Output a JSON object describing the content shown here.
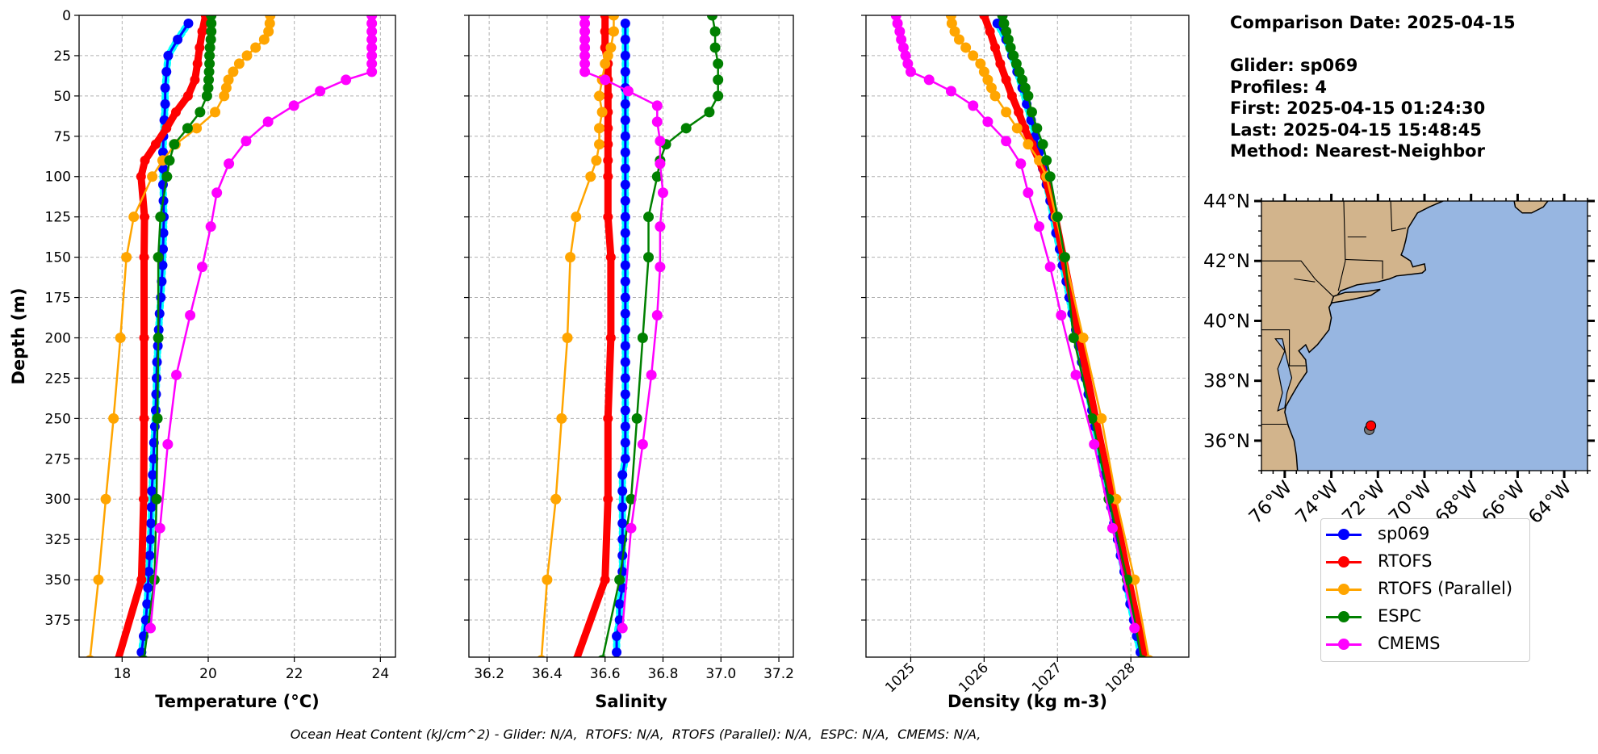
{
  "info": {
    "comparison_date": "Comparison Date: 2025-04-15",
    "glider": "Glider: sp069",
    "profiles": "Profiles: 4",
    "first": "First: 2025-04-15 01:24:30",
    "last": "Last: 2025-04-15 15:48:45",
    "method": "Method: Nearest-Neighbor"
  },
  "footer": "Ocean Heat Content (kJ/cm^2) - Glider: N/A,  RTOFS: N/A,  RTOFS (Parallel): N/A,  ESPC: N/A,  CMEMS: N/A,",
  "legend": [
    {
      "label": "sp069",
      "color": "#0000ff"
    },
    {
      "label": "RTOFS",
      "color": "#ff0000"
    },
    {
      "label": "RTOFS (Parallel)",
      "color": "#ffa500"
    },
    {
      "label": "ESPC",
      "color": "#008000"
    },
    {
      "label": "CMEMS",
      "color": "#ff00ff"
    }
  ],
  "colors": {
    "sp069": "#0000ff",
    "sp069_profiles": "#00ffff",
    "RTOFS": "#ff0000",
    "RTOFS (Parallel)": "#ffa500",
    "ESPC": "#008000",
    "CMEMS": "#ff00ff",
    "land": "#d2b48c",
    "ocean": "#97b6e1"
  },
  "chart_data": [
    {
      "type": "line",
      "xlabel": "Temperature (°C)",
      "ylabel": "Depth (m)",
      "xlim": [
        17.0,
        24.35
      ],
      "ylim": [
        0,
        398
      ],
      "y_inverted": true,
      "grid": true,
      "xticks": [
        18,
        20,
        22,
        24
      ],
      "xtick_labels": [
        "18",
        "20",
        "22",
        "24"
      ],
      "yticks": [
        0,
        25,
        50,
        75,
        100,
        125,
        150,
        175,
        200,
        225,
        250,
        275,
        300,
        325,
        350,
        375
      ],
      "ytick_labels": [
        "0",
        "25",
        "50",
        "75",
        "100",
        "125",
        "150",
        "175",
        "200",
        "225",
        "250",
        "275",
        "300",
        "325",
        "350",
        "375"
      ],
      "series": [
        {
          "name": "sp069",
          "depth": [
            5,
            15,
            25,
            35,
            45,
            55,
            65,
            75,
            85,
            95,
            105,
            115,
            125,
            135,
            145,
            155,
            165,
            175,
            185,
            195,
            205,
            215,
            225,
            235,
            245,
            255,
            265,
            275,
            285,
            295,
            305,
            315,
            325,
            335,
            345,
            355,
            365,
            375,
            385,
            395
          ],
          "values": [
            19.54,
            19.29,
            19.07,
            19.03,
            19.0,
            19.0,
            18.98,
            18.96,
            18.95,
            18.95,
            18.95,
            18.96,
            18.97,
            18.96,
            18.95,
            18.94,
            18.92,
            18.9,
            18.87,
            18.85,
            18.83,
            18.81,
            18.8,
            18.79,
            18.78,
            18.76,
            18.74,
            18.73,
            18.71,
            18.69,
            18.68,
            18.67,
            18.66,
            18.64,
            18.62,
            18.6,
            18.58,
            18.55,
            18.5,
            18.45
          ]
        },
        {
          "name": "RTOFS",
          "depth": [
            0,
            10,
            20,
            30,
            40,
            50,
            60,
            70,
            80,
            90,
            100,
            125,
            150,
            200,
            250,
            300,
            350,
            400
          ],
          "values": [
            19.94,
            19.86,
            19.8,
            19.75,
            19.69,
            19.53,
            19.25,
            19.03,
            18.78,
            18.53,
            18.44,
            18.52,
            18.51,
            18.51,
            18.51,
            18.5,
            18.45,
            17.9
          ]
        },
        {
          "name": "RTOFS (Parallel)",
          "depth": [
            0,
            5,
            10,
            15,
            20,
            25,
            30,
            35,
            40,
            45,
            50,
            60,
            70,
            80,
            90,
            100,
            125,
            150,
            200,
            250,
            300,
            350,
            400
          ],
          "values": [
            21.44,
            21.43,
            21.4,
            21.3,
            21.1,
            20.9,
            20.72,
            20.58,
            20.47,
            20.42,
            20.37,
            20.16,
            19.73,
            19.24,
            18.94,
            18.7,
            18.27,
            18.1,
            17.96,
            17.8,
            17.62,
            17.45,
            17.25
          ]
        },
        {
          "name": "ESPC",
          "depth": [
            0,
            5,
            10,
            15,
            20,
            25,
            30,
            35,
            40,
            45,
            50,
            60,
            70,
            80,
            90,
            100,
            125,
            150,
            200,
            250,
            300,
            350,
            400
          ],
          "values": [
            20.07,
            20.07,
            20.07,
            20.06,
            20.04,
            20.03,
            20.03,
            20.02,
            20.01,
            20.0,
            19.97,
            19.81,
            19.52,
            19.21,
            19.1,
            19.04,
            18.89,
            18.84,
            18.84,
            18.82,
            18.8,
            18.75,
            18.5
          ]
        },
        {
          "name": "CMEMS",
          "depth": [
            0,
            5,
            10,
            15,
            20,
            25,
            30,
            35,
            40,
            47,
            56,
            66,
            78,
            92,
            110,
            131,
            156,
            186,
            223,
            266,
            318,
            380
          ],
          "values": [
            23.8,
            23.8,
            23.8,
            23.8,
            23.8,
            23.8,
            23.8,
            23.8,
            23.2,
            22.6,
            21.99,
            21.39,
            20.88,
            20.48,
            20.2,
            20.06,
            19.86,
            19.58,
            19.26,
            19.06,
            18.88,
            18.66
          ]
        }
      ]
    },
    {
      "type": "line",
      "xlabel": "Salinity",
      "xlim": [
        36.13,
        37.25
      ],
      "ylim": [
        0,
        398
      ],
      "y_inverted": true,
      "grid": true,
      "xticks": [
        36.2,
        36.4,
        36.6,
        36.8,
        37.0,
        37.2
      ],
      "xtick_labels": [
        "36.2",
        "36.4",
        "36.6",
        "36.8",
        "37.0",
        "37.2"
      ],
      "yticks": [
        0,
        25,
        50,
        75,
        100,
        125,
        150,
        175,
        200,
        225,
        250,
        275,
        300,
        325,
        350,
        375
      ],
      "series": [
        {
          "name": "sp069",
          "depth": [
            5,
            15,
            25,
            35,
            45,
            55,
            65,
            75,
            85,
            95,
            105,
            115,
            125,
            135,
            145,
            155,
            165,
            175,
            185,
            195,
            205,
            215,
            225,
            235,
            245,
            255,
            265,
            275,
            285,
            295,
            305,
            315,
            325,
            335,
            345,
            355,
            365,
            375,
            385,
            395
          ],
          "values": [
            36.67,
            36.67,
            36.67,
            36.67,
            36.67,
            36.67,
            36.67,
            36.67,
            36.67,
            36.67,
            36.67,
            36.67,
            36.67,
            36.67,
            36.67,
            36.67,
            36.67,
            36.67,
            36.67,
            36.67,
            36.67,
            36.67,
            36.67,
            36.67,
            36.67,
            36.67,
            36.67,
            36.67,
            36.66,
            36.66,
            36.66,
            36.66,
            36.66,
            36.66,
            36.66,
            36.66,
            36.65,
            36.65,
            36.64,
            36.64
          ]
        },
        {
          "name": "RTOFS",
          "depth": [
            0,
            10,
            20,
            30,
            40,
            50,
            60,
            70,
            80,
            90,
            100,
            125,
            150,
            200,
            250,
            300,
            350,
            400
          ],
          "values": [
            36.6,
            36.6,
            36.6,
            36.61,
            36.61,
            36.61,
            36.61,
            36.61,
            36.61,
            36.61,
            36.61,
            36.61,
            36.62,
            36.62,
            36.61,
            36.61,
            36.6,
            36.5
          ]
        },
        {
          "name": "RTOFS (Parallel)",
          "depth": [
            0,
            10,
            20,
            25,
            30,
            40,
            50,
            60,
            70,
            80,
            90,
            100,
            125,
            150,
            200,
            250,
            300,
            350,
            400
          ],
          "values": [
            36.63,
            36.63,
            36.62,
            36.61,
            36.6,
            36.59,
            36.58,
            36.59,
            36.58,
            36.58,
            36.57,
            36.55,
            36.5,
            36.48,
            36.47,
            36.45,
            36.43,
            36.4,
            36.38
          ]
        },
        {
          "name": "ESPC",
          "depth": [
            0,
            10,
            20,
            30,
            40,
            50,
            60,
            70,
            80,
            90,
            100,
            125,
            150,
            200,
            250,
            300,
            350,
            400
          ],
          "values": [
            36.97,
            36.98,
            36.98,
            36.99,
            36.99,
            36.99,
            36.96,
            36.88,
            36.81,
            36.79,
            36.78,
            36.75,
            36.75,
            36.73,
            36.71,
            36.69,
            36.65,
            36.59
          ]
        },
        {
          "name": "CMEMS",
          "depth": [
            0,
            5,
            10,
            15,
            20,
            25,
            30,
            35,
            40,
            47,
            56,
            66,
            78,
            92,
            110,
            131,
            156,
            186,
            223,
            266,
            318,
            380
          ],
          "values": [
            36.53,
            36.53,
            36.53,
            36.53,
            36.53,
            36.53,
            36.53,
            36.53,
            36.6,
            36.68,
            36.78,
            36.78,
            36.79,
            36.79,
            36.8,
            36.79,
            36.79,
            36.78,
            36.76,
            36.73,
            36.69,
            36.66
          ]
        }
      ]
    },
    {
      "type": "line",
      "xlabel": "Density (kg m-3)",
      "xlim": [
        1024.39,
        1028.79
      ],
      "ylim": [
        0,
        398
      ],
      "y_inverted": true,
      "grid": true,
      "xticks": [
        1025,
        1026,
        1027,
        1028
      ],
      "xtick_labels": [
        "1025",
        "1026",
        "1027",
        "1028"
      ],
      "yticks": [
        0,
        25,
        50,
        75,
        100,
        125,
        150,
        175,
        200,
        225,
        250,
        275,
        300,
        325,
        350,
        375
      ],
      "series": [
        {
          "name": "sp069",
          "depth": [
            5,
            15,
            25,
            35,
            45,
            55,
            65,
            75,
            85,
            95,
            105,
            115,
            125,
            135,
            145,
            155,
            165,
            175,
            185,
            195,
            205,
            215,
            225,
            235,
            245,
            255,
            265,
            275,
            285,
            295,
            305,
            315,
            325,
            335,
            345,
            355,
            365,
            375,
            385,
            395
          ],
          "values": [
            1026.18,
            1026.3,
            1026.38,
            1026.45,
            1026.52,
            1026.58,
            1026.64,
            1026.7,
            1026.75,
            1026.8,
            1026.85,
            1026.9,
            1026.94,
            1026.98,
            1027.03,
            1027.07,
            1027.12,
            1027.16,
            1027.2,
            1027.25,
            1027.29,
            1027.33,
            1027.38,
            1027.42,
            1027.47,
            1027.51,
            1027.55,
            1027.6,
            1027.64,
            1027.69,
            1027.73,
            1027.77,
            1027.82,
            1027.86,
            1027.91,
            1027.95,
            1027.99,
            1028.04,
            1028.08,
            1028.13
          ]
        },
        {
          "name": "RTOFS",
          "depth": [
            0,
            10,
            20,
            30,
            40,
            50,
            60,
            70,
            80,
            90,
            100,
            125,
            150,
            200,
            250,
            300,
            350,
            400
          ],
          "values": [
            1026.0,
            1026.08,
            1026.15,
            1026.22,
            1026.3,
            1026.38,
            1026.47,
            1026.55,
            1026.65,
            1026.75,
            1026.83,
            1026.97,
            1027.08,
            1027.3,
            1027.52,
            1027.75,
            1027.97,
            1028.2
          ]
        },
        {
          "name": "RTOFS (Parallel)",
          "depth": [
            0,
            5,
            10,
            15,
            20,
            25,
            30,
            35,
            40,
            45,
            50,
            60,
            70,
            80,
            90,
            100,
            125,
            150,
            200,
            250,
            300,
            350,
            400
          ],
          "values": [
            1025.55,
            1025.56,
            1025.6,
            1025.66,
            1025.75,
            1025.85,
            1025.95,
            1026.0,
            1026.05,
            1026.1,
            1026.15,
            1026.3,
            1026.45,
            1026.6,
            1026.75,
            1026.85,
            1026.98,
            1027.1,
            1027.35,
            1027.6,
            1027.8,
            1028.05,
            1028.25
          ]
        },
        {
          "name": "ESPC",
          "depth": [
            0,
            5,
            10,
            15,
            20,
            25,
            30,
            35,
            40,
            45,
            50,
            60,
            70,
            80,
            90,
            100,
            125,
            150,
            200,
            250,
            300,
            350,
            400
          ],
          "values": [
            1026.25,
            1026.27,
            1026.3,
            1026.33,
            1026.36,
            1026.4,
            1026.44,
            1026.48,
            1026.52,
            1026.56,
            1026.6,
            1026.65,
            1026.72,
            1026.8,
            1026.85,
            1026.9,
            1027.0,
            1027.1,
            1027.22,
            1027.47,
            1027.7,
            1027.95,
            1028.15
          ]
        },
        {
          "name": "CMEMS",
          "depth": [
            0,
            5,
            10,
            15,
            20,
            25,
            30,
            35,
            40,
            47,
            56,
            66,
            78,
            92,
            110,
            131,
            156,
            186,
            223,
            266,
            318,
            380
          ],
          "values": [
            1024.8,
            1024.82,
            1024.85,
            1024.87,
            1024.9,
            1024.93,
            1024.96,
            1025.0,
            1025.25,
            1025.55,
            1025.85,
            1026.05,
            1026.3,
            1026.5,
            1026.6,
            1026.75,
            1026.9,
            1027.05,
            1027.25,
            1027.5,
            1027.75,
            1028.05
          ]
        }
      ]
    }
  ],
  "map": {
    "lon_range": [
      -77,
      -63
    ],
    "lat_range": [
      35,
      44
    ],
    "lon_ticks": [
      -76,
      -74,
      -72,
      -70,
      -68,
      -66,
      -64
    ],
    "lon_tick_labels": [
      "76°W",
      "74°W",
      "72°W",
      "70°W",
      "68°W",
      "66°W",
      "64°W"
    ],
    "lat_ticks": [
      36,
      38,
      40,
      42,
      44
    ],
    "lat_tick_labels": [
      "36°N",
      "38°N",
      "40°N",
      "42°N",
      "44°N"
    ],
    "glider_position": {
      "lon": -72.3,
      "lat": 36.5
    }
  }
}
